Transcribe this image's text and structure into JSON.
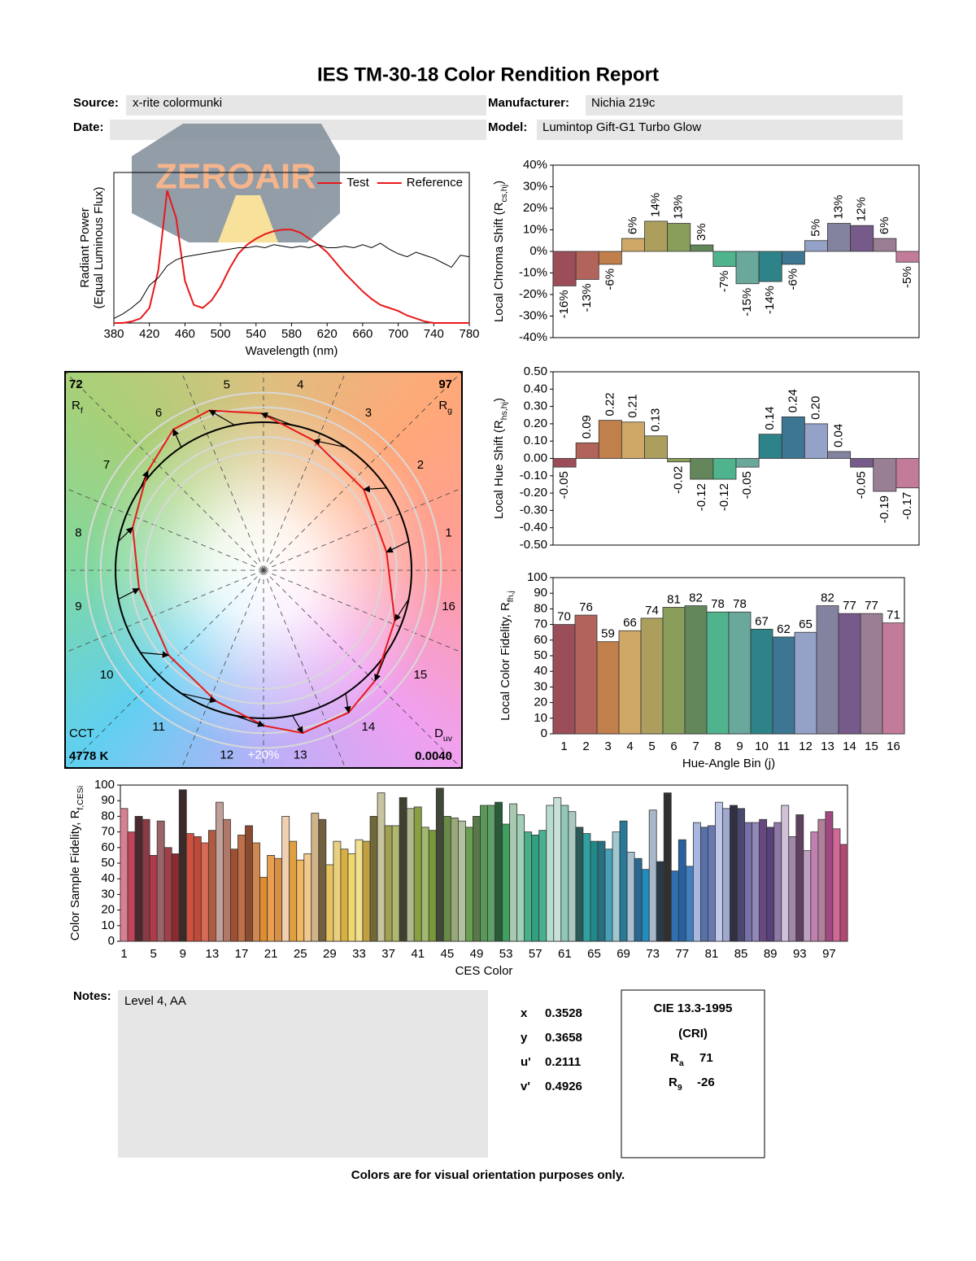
{
  "report": {
    "title": "IES TM-30-18 Color Rendition Report",
    "source_label": "Source:",
    "source": "x-rite colormunki",
    "manufacturer_label": "Manufacturer:",
    "manufacturer": "Nichia 219c",
    "date_label": "Date:",
    "model_label": "Model:",
    "model": "Lumintop Gift-G1 Turbo Glow",
    "watermark": "ZEROAIR",
    "notes_label": "Notes:",
    "notes": "Level 4, AA",
    "chromaticity": [
      {
        "label": "x",
        "value": 0.3528
      },
      {
        "label": "y",
        "value": 0.3658
      },
      {
        "label": "u'",
        "value": 0.2111
      },
      {
        "label": "v'",
        "value": 0.4926
      }
    ],
    "cri": {
      "title": "CIE 13.3-1995",
      "subtitle": "(CRI)",
      "ra": {
        "symbol": "R",
        "sub": "a",
        "value": 71
      },
      "r9": {
        "symbol": "R",
        "sub": "9",
        "value": -26
      }
    },
    "footer": "Colors are for visual orientation purposes only."
  },
  "chart_data": [
    {
      "type": "line",
      "xlabel": "Wavelength (nm)",
      "ylabel": "Radiant Power",
      "ylabel_note": "(Equal Luminous Flux)",
      "x": [
        380,
        390,
        400,
        410,
        420,
        430,
        440,
        450,
        460,
        470,
        480,
        490,
        500,
        510,
        520,
        530,
        540,
        550,
        560,
        570,
        580,
        590,
        600,
        610,
        620,
        630,
        640,
        650,
        660,
        670,
        680,
        690,
        700,
        710,
        720,
        730,
        740,
        750,
        760,
        770,
        780
      ],
      "series": [
        {
          "name": "Test",
          "color": "#e8191b",
          "values": [
            0,
            0,
            0.01,
            0.03,
            0.1,
            0.35,
            0.88,
            0.7,
            0.28,
            0.12,
            0.1,
            0.15,
            0.24,
            0.36,
            0.46,
            0.52,
            0.56,
            0.59,
            0.61,
            0.62,
            0.62,
            0.6,
            0.56,
            0.52,
            0.47,
            0.4,
            0.33,
            0.27,
            0.21,
            0.16,
            0.12,
            0.1,
            0.08,
            0.05,
            0.03,
            0.01,
            0,
            0,
            0,
            0,
            0
          ]
        },
        {
          "name": "Reference",
          "color": "#000000",
          "values": [
            0.03,
            0.06,
            0.1,
            0.15,
            0.25,
            0.3,
            0.38,
            0.42,
            0.44,
            0.45,
            0.46,
            0.47,
            0.48,
            0.49,
            0.5,
            0.5,
            0.51,
            0.5,
            0.52,
            0.51,
            0.5,
            0.51,
            0.5,
            0.52,
            0.5,
            0.5,
            0.51,
            0.5,
            0.52,
            0.5,
            0.53,
            0.49,
            0.46,
            0.44,
            0.47,
            0.45,
            0.43,
            0.4,
            0.37,
            0.45,
            0.44
          ]
        }
      ],
      "xlim": [
        380,
        780
      ],
      "xticks": [
        380,
        420,
        460,
        500,
        540,
        580,
        620,
        660,
        700,
        740,
        780
      ],
      "ylim": [
        0,
        1
      ],
      "legend": "upper right"
    },
    {
      "type": "bar",
      "ylabel": "Local Chroma Shift (R",
      "ylabel_sub": "cs,hj",
      "ylabel_end": ")",
      "values": [
        -16,
        -13,
        -6,
        6,
        14,
        13,
        3,
        -7,
        -15,
        -14,
        -6,
        5,
        13,
        12,
        6,
        -5
      ],
      "value_labels": [
        "-16%",
        "-13%",
        "-6%",
        "6%",
        "14%",
        "13%",
        "3%",
        "-7%",
        "-15%",
        "-14%",
        "-6%",
        "5%",
        "13%",
        "12%",
        "6%",
        "-5%"
      ],
      "colors": [
        "#9b4d58",
        "#b3645a",
        "#c07f4b",
        "#cfa766",
        "#ac9f5e",
        "#8a9e5c",
        "#63875a",
        "#4fb48d",
        "#6aa89c",
        "#2e8388",
        "#3c7693",
        "#94a2c8",
        "#84839f",
        "#765a8a",
        "#9a7f94",
        "#c27c9a"
      ],
      "ylim": [
        -40,
        40
      ],
      "yticks": [
        {
          "value": 40,
          "label": "40%"
        },
        {
          "value": 30,
          "label": "30%"
        },
        {
          "value": 20,
          "label": "20%"
        },
        {
          "value": 10,
          "label": "10%"
        },
        {
          "value": 0,
          "label": "0%"
        },
        {
          "value": -10,
          "label": "-10%"
        },
        {
          "value": -20,
          "label": "-20%"
        },
        {
          "value": -30,
          "label": "-30%"
        },
        {
          "value": -40,
          "label": "-40%"
        }
      ]
    },
    {
      "type": "bar",
      "ylabel": "Local Hue Shift (R",
      "ylabel_sub": "hs,hj",
      "ylabel_end": ")",
      "values": [
        -0.05,
        0.09,
        0.22,
        0.21,
        0.13,
        -0.02,
        -0.12,
        -0.12,
        -0.05,
        0.14,
        0.24,
        0.2,
        0.04,
        -0.05,
        -0.19,
        -0.17
      ],
      "value_labels": [
        "-0.05",
        "0.09",
        "0.22",
        "0.21",
        "0.13",
        "-0.02",
        "-0.12",
        "-0.12",
        "-0.05",
        "0.14",
        "0.24",
        "0.20",
        "0.04",
        "-0.05",
        "-0.19",
        "-0.17"
      ],
      "colors": [
        "#9b4d58",
        "#b3645a",
        "#c07f4b",
        "#cfa766",
        "#ac9f5e",
        "#8a9e5c",
        "#63875a",
        "#4fb48d",
        "#6aa89c",
        "#2e8388",
        "#3c7693",
        "#94a2c8",
        "#84839f",
        "#765a8a",
        "#9a7f94",
        "#c27c9a"
      ],
      "ylim": [
        -0.5,
        0.5
      ],
      "yticks": [
        {
          "value": 0.5,
          "label": "0.50"
        },
        {
          "value": 0.4,
          "label": "0.40"
        },
        {
          "value": 0.3,
          "label": "0.30"
        },
        {
          "value": 0.2,
          "label": "0.20"
        },
        {
          "value": 0.1,
          "label": "0.10"
        },
        {
          "value": 0,
          "label": "0.00"
        },
        {
          "value": -0.1,
          "label": "-0.10"
        },
        {
          "value": -0.2,
          "label": "-0.20"
        },
        {
          "value": -0.3,
          "label": "-0.30"
        },
        {
          "value": -0.4,
          "label": "-0.40"
        },
        {
          "value": -0.5,
          "label": "-0.50"
        }
      ]
    },
    {
      "type": "bar",
      "ylabel": "Local Color Fidelity, R",
      "ylabel_sub": "fh,j",
      "xlabel": "Hue-Angle Bin (j)",
      "categories": [
        "1",
        "2",
        "3",
        "4",
        "5",
        "6",
        "7",
        "8",
        "9",
        "10",
        "11",
        "12",
        "13",
        "14",
        "15",
        "16"
      ],
      "values": [
        70,
        76,
        59,
        66,
        74,
        81,
        82,
        78,
        78,
        67,
        62,
        65,
        82,
        77,
        77,
        71
      ],
      "colors": [
        "#9b4d58",
        "#b3645a",
        "#c07f4b",
        "#cfa766",
        "#ac9f5e",
        "#8a9e5c",
        "#63875a",
        "#4fb48d",
        "#6aa89c",
        "#2e8388",
        "#3c7693",
        "#94a2c8",
        "#84839f",
        "#765a8a",
        "#9a7f94",
        "#c27c9a"
      ],
      "ylim": [
        0,
        100
      ],
      "yticks": [
        0,
        10,
        20,
        30,
        40,
        50,
        60,
        70,
        80,
        90,
        100
      ]
    },
    {
      "type": "vector",
      "rf": {
        "value": 72,
        "symbol": "R",
        "sub": "f"
      },
      "rg": {
        "value": 97,
        "symbol": "R",
        "sub": "g"
      },
      "cct": {
        "name": "CCT",
        "value": 4778,
        "label": "4778 K"
      },
      "duv": {
        "symbol": "D",
        "sub": "uv",
        "value": 0.004,
        "label": "0.0040"
      },
      "bins": [
        "1",
        "2",
        "3",
        "4",
        "5",
        "6",
        "7",
        "8",
        "9",
        "10",
        "11",
        "12",
        "13",
        "14",
        "15",
        "16"
      ],
      "ring_label": "+20%",
      "reference_color": "#000000",
      "test_color": "#e8191b"
    },
    {
      "type": "bar",
      "ylabel": "Color Sample Fidelity, R",
      "ylabel_sub": "f,CESi",
      "xlabel": "CES Color",
      "categories": [
        "1",
        null,
        null,
        null,
        "5",
        null,
        null,
        null,
        "9",
        null,
        null,
        null,
        "13",
        null,
        null,
        null,
        "17",
        null,
        null,
        null,
        "21",
        null,
        null,
        null,
        "25",
        null,
        null,
        null,
        "29",
        null,
        null,
        null,
        "33",
        null,
        null,
        null,
        "37",
        null,
        null,
        null,
        "41",
        null,
        null,
        null,
        "45",
        null,
        null,
        null,
        "49",
        null,
        null,
        null,
        "53",
        null,
        null,
        null,
        "57",
        null,
        null,
        null,
        "61",
        null,
        null,
        null,
        "65",
        null,
        null,
        null,
        "69",
        null,
        null,
        null,
        "73",
        null,
        null,
        null,
        "77",
        null,
        null,
        null,
        "81",
        null,
        null,
        null,
        "85",
        null,
        null,
        null,
        "89",
        null,
        null,
        null,
        "93",
        null,
        null,
        null,
        "97",
        null,
        null
      ],
      "values": [
        85,
        70,
        80,
        78,
        55,
        77,
        60,
        56,
        97,
        69,
        67,
        63,
        71,
        89,
        78,
        59,
        68,
        74,
        63,
        41,
        55,
        53,
        80,
        64,
        52,
        56,
        82,
        78,
        49,
        64,
        59,
        56,
        65,
        64,
        80,
        95,
        74,
        74,
        92,
        85,
        86,
        73,
        71,
        98,
        80,
        79,
        77,
        73,
        80,
        87,
        87,
        89,
        75,
        88,
        81,
        70,
        68,
        71,
        87,
        92,
        87,
        83,
        73,
        69,
        64,
        64,
        59,
        70,
        77,
        57,
        53,
        46,
        84,
        51,
        95,
        45,
        65,
        48,
        76,
        73,
        74,
        89,
        85,
        87,
        85,
        76,
        76,
        78,
        73,
        76,
        87,
        67,
        81,
        58,
        70,
        78,
        83,
        72,
        62
      ],
      "colors": [
        "#d87f92",
        "#c0445a",
        "#4a2a2e",
        "#8a3a44",
        "#b03a48",
        "#9a6468",
        "#a04048",
        "#8c2a30",
        "#3a2a28",
        "#d05040",
        "#c04a38",
        "#d86a58",
        "#b05a40",
        "#c0a098",
        "#b07868",
        "#a05030",
        "#c07048",
        "#8a4a30",
        "#d08850",
        "#e08c30",
        "#e8a050",
        "#d89048",
        "#f0d0b0",
        "#e0a040",
        "#f0b860",
        "#f0c890",
        "#d0b488",
        "#706040",
        "#e8c460",
        "#e8d080",
        "#d8b040",
        "#f0d870",
        "#f0e090",
        "#c0a040",
        "#706838",
        "#c8c4a0",
        "#a0a050",
        "#b0b870",
        "#404030",
        "#b0b890",
        "#88a040",
        "#a0b870",
        "#7a9838",
        "#404838",
        "#6a8a48",
        "#98a878",
        "#b0c0a0",
        "#68a050",
        "#587848",
        "#5a9858",
        "#60a068",
        "#2a5a38",
        "#40a060",
        "#a8c8b0",
        "#a0d0b8",
        "#48b088",
        "#30a080",
        "#48b090",
        "#b8dcd0",
        "#c8e0d8",
        "#90c8b8",
        "#a8c8c0",
        "#2a5a58",
        "#30a0a0",
        "#208888",
        "#287080",
        "#48a0b8",
        "#a0c8d0",
        "#2a7898",
        "#a8c0d0",
        "#2a6890",
        "#208cc0",
        "#a8b8c8",
        "#2a3a48",
        "#303030",
        "#3070b0",
        "#2860a0",
        "#4080c0",
        "#a8b8e0",
        "#5870a8",
        "#6878b0",
        "#c0c8e8",
        "#a0a8d0",
        "#303040",
        "#484870",
        "#7870a8",
        "#9088b8",
        "#684880",
        "#584078",
        "#9078a8",
        "#d0c0d8",
        "#a088a8",
        "#604060",
        "#c0a0c0",
        "#c080b0",
        "#b08098",
        "#a04880",
        "#d06898",
        "#b04870"
      ],
      "ylim": [
        0,
        100
      ],
      "yticks": [
        0,
        10,
        20,
        30,
        40,
        50,
        60,
        70,
        80,
        90,
        100
      ]
    }
  ]
}
